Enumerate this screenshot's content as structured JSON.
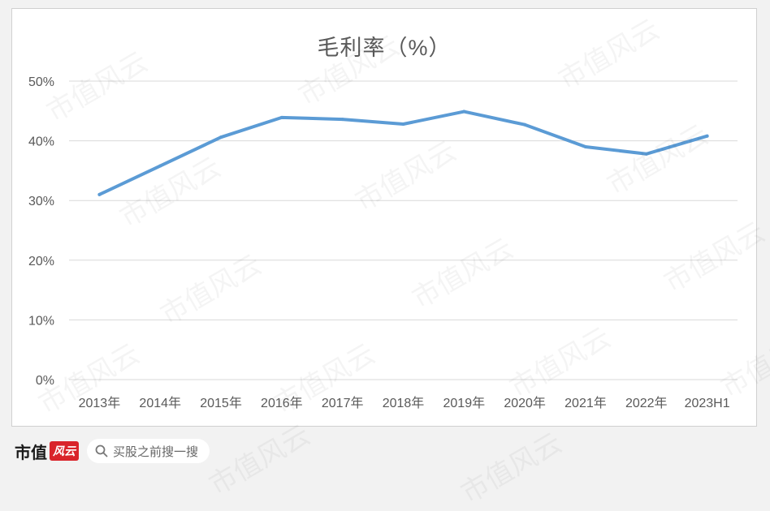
{
  "chart_data": {
    "type": "line",
    "title": "毛利率（%）",
    "categories": [
      "2013年",
      "2014年",
      "2015年",
      "2016年",
      "2017年",
      "2018年",
      "2019年",
      "2020年",
      "2021年",
      "2022年",
      "2023H1"
    ],
    "series": [
      {
        "values": [
          31.0,
          35.8,
          40.6,
          43.9,
          43.6,
          42.8,
          44.9,
          42.7,
          39.0,
          37.8,
          40.8
        ],
        "color": "#5b9bd5"
      }
    ],
    "yticks": [
      "0%",
      "10%",
      "20%",
      "30%",
      "40%",
      "50%"
    ],
    "ylim": [
      0,
      50
    ],
    "grid": true,
    "legend": false
  },
  "footer": {
    "brand_text": "市值",
    "brand_badge": "风云",
    "search_placeholder": "买股之前搜一搜",
    "search_icon": "search-icon"
  },
  "watermark": "市值风云"
}
